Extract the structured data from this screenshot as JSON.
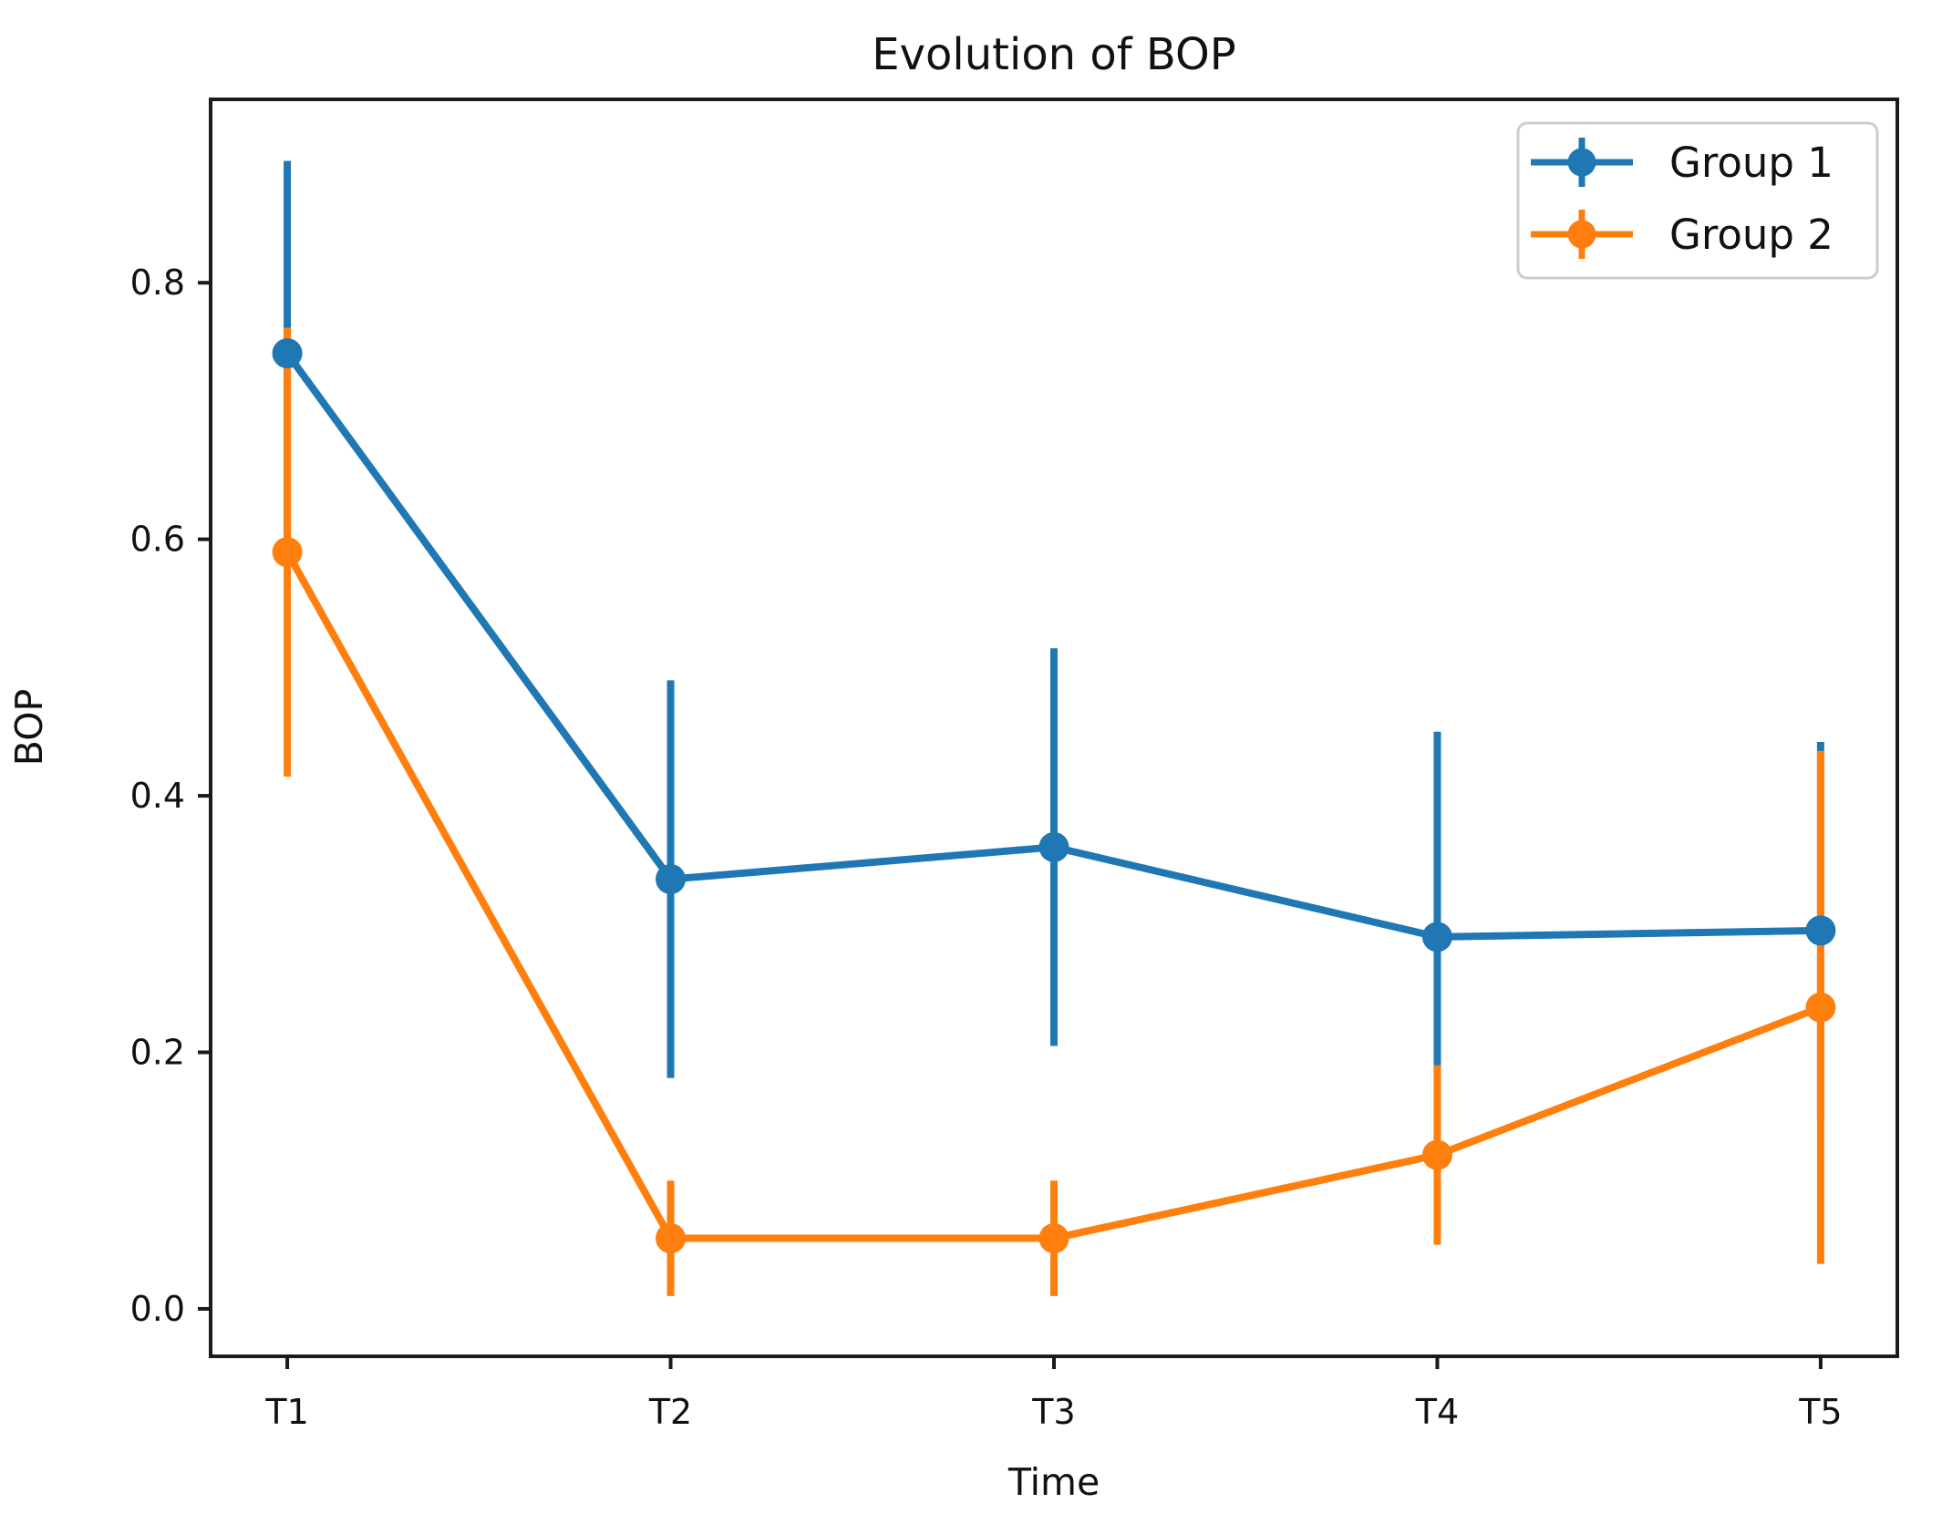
{
  "figure": {
    "background": "#ffffff",
    "text_color": "#111111",
    "spine_color": "#1a1a1a",
    "legend_border_color": "#cccccc"
  },
  "chart_data": {
    "type": "line",
    "title": "Evolution of BOP",
    "xlabel": "Time",
    "ylabel": "BOP",
    "categories": [
      "T1",
      "T2",
      "T3",
      "T4",
      "T5"
    ],
    "series": [
      {
        "name": "Group 1",
        "color": "#1f77b4",
        "values": [
          0.745,
          0.335,
          0.36,
          0.29,
          0.295
        ],
        "errors": [
          0.15,
          0.155,
          0.155,
          0.16,
          0.147
        ]
      },
      {
        "name": "Group 2",
        "color": "#ff7f0e",
        "values": [
          0.59,
          0.055,
          0.055,
          0.12,
          0.235
        ],
        "errors": [
          0.175,
          0.045,
          0.045,
          0.07,
          0.2
        ]
      }
    ],
    "yticks": [
      0.0,
      0.2,
      0.4,
      0.6,
      0.8
    ],
    "ytick_labels": [
      "0.0",
      "0.2",
      "0.4",
      "0.6",
      "0.8"
    ],
    "ylim": [
      -0.037,
      0.943
    ],
    "xlim": [
      -0.2,
      4.2
    ],
    "grid": false,
    "error_bars": true,
    "error_bar_caps": false,
    "marker": "circle",
    "legend_position": "upper right",
    "legend_entries": [
      "Group 1",
      "Group 2"
    ]
  }
}
